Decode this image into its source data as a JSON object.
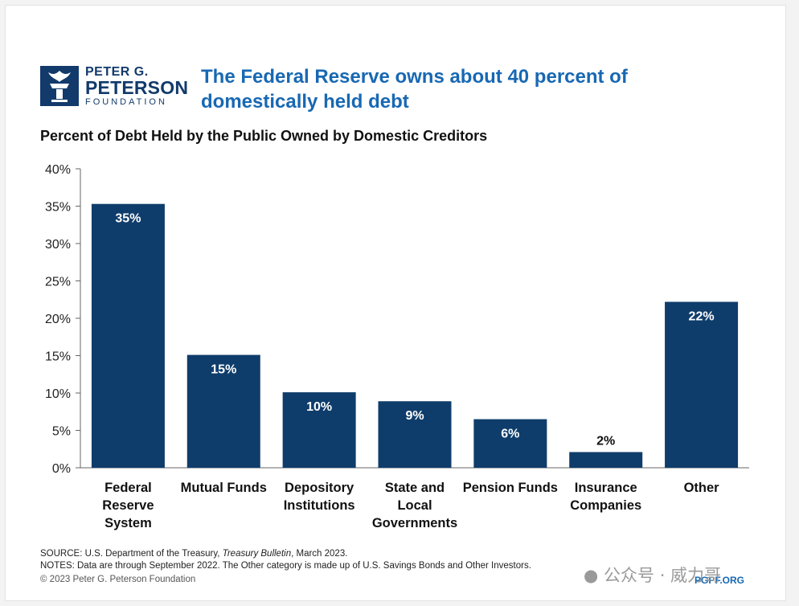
{
  "logo": {
    "line1": "PETER G.",
    "line2": "PETERSON",
    "line3": "FOUNDATION"
  },
  "headline": "The Federal Reserve owns about 40 percent of domestically held debt",
  "colors": {
    "bar": "#0f3d6b",
    "headline": "#1868b3",
    "brand": "#123a6b"
  },
  "chart_data": {
    "type": "bar",
    "title": "Percent of Debt Held by the Public Owned by Domestic Creditors",
    "categories": [
      [
        "Federal",
        "Reserve",
        "System"
      ],
      [
        "Mutual Funds"
      ],
      [
        "Depository",
        "Institutions"
      ],
      [
        "State and",
        "Local",
        "Governments"
      ],
      [
        "Pension Funds"
      ],
      [
        "Insurance",
        "Companies"
      ],
      [
        "Other"
      ]
    ],
    "values": [
      35.3,
      15.1,
      10.1,
      8.9,
      6.5,
      2.1,
      22.2
    ],
    "data_labels": [
      "35%",
      "15%",
      "10%",
      "9%",
      "6%",
      "2%",
      "22%"
    ],
    "ylim": [
      0,
      40
    ],
    "yticks": [
      0,
      5,
      10,
      15,
      20,
      25,
      30,
      35,
      40
    ],
    "ytick_labels": [
      "0%",
      "5%",
      "10%",
      "15%",
      "20%",
      "25%",
      "30%",
      "35%",
      "40%"
    ],
    "grid": false
  },
  "footer": {
    "source_prefix": "SOURCE: U.S. Department of the Treasury, ",
    "source_italic": "Treasury Bulletin",
    "source_suffix": ", March 2023.",
    "notes": "NOTES: Data are through September 2022. The Other category is made up of U.S. Savings Bonds and Other Investors.",
    "copyright": "© 2023 Peter G. Peterson Foundation",
    "site": "PGPF.ORG"
  },
  "watermark": {
    "icon": "wechat-icon",
    "text": "公众号 · 威力哥"
  }
}
